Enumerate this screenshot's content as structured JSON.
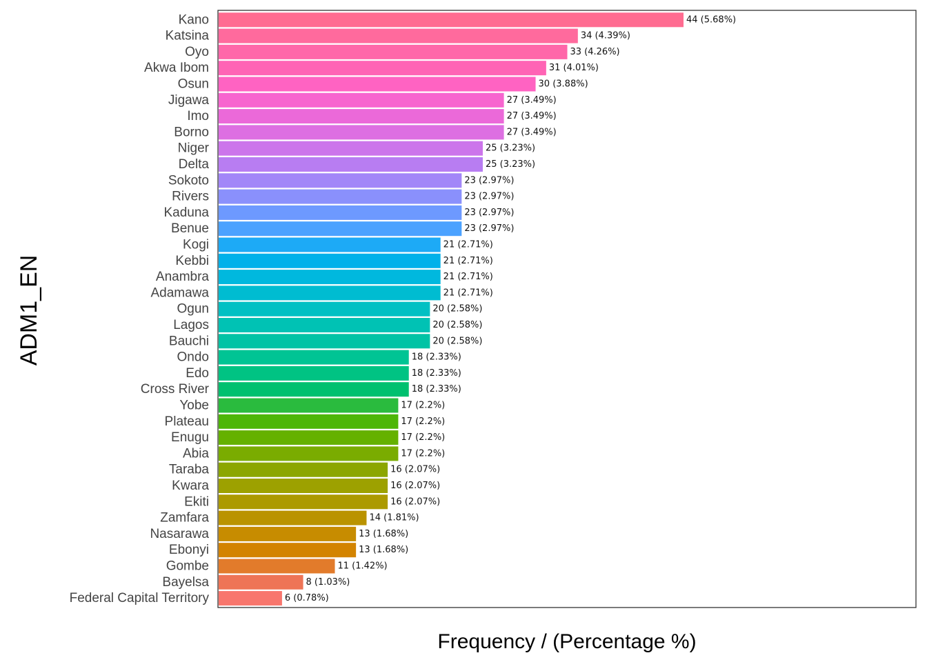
{
  "chart_data": {
    "type": "bar",
    "orientation": "horizontal",
    "xlabel": "Frequency / (Percentage %)",
    "ylabel": "ADM1_EN",
    "grid": false,
    "legend": "none",
    "categories": [
      "Kano",
      "Katsina",
      "Oyo",
      "Akwa Ibom",
      "Osun",
      "Jigawa",
      "Imo",
      "Borno",
      "Niger",
      "Delta",
      "Sokoto",
      "Rivers",
      "Kaduna",
      "Benue",
      "Kogi",
      "Kebbi",
      "Anambra",
      "Adamawa",
      "Ogun",
      "Lagos",
      "Bauchi",
      "Ondo",
      "Edo",
      "Cross River",
      "Yobe",
      "Plateau",
      "Enugu",
      "Abia",
      "Taraba",
      "Kwara",
      "Ekiti",
      "Zamfara",
      "Nasarawa",
      "Ebonyi",
      "Gombe",
      "Bayelsa",
      "Federal Capital Territory"
    ],
    "values": [
      44,
      34,
      33,
      31,
      30,
      27,
      27,
      27,
      25,
      25,
      23,
      23,
      23,
      23,
      21,
      21,
      21,
      21,
      20,
      20,
      20,
      18,
      18,
      18,
      17,
      17,
      17,
      17,
      16,
      16,
      16,
      14,
      13,
      13,
      11,
      8,
      6
    ],
    "labels": [
      "44 (5.68%)",
      "34 (4.39%)",
      "33 (4.26%)",
      "31 (4.01%)",
      "30 (3.88%)",
      "27 (3.49%)",
      "27 (3.49%)",
      "27 (3.49%)",
      "25 (3.23%)",
      "25 (3.23%)",
      "23 (2.97%)",
      "23 (2.97%)",
      "23 (2.97%)",
      "23 (2.97%)",
      "21 (2.71%)",
      "21 (2.71%)",
      "21 (2.71%)",
      "21 (2.71%)",
      "20 (2.58%)",
      "20 (2.58%)",
      "20 (2.58%)",
      "18 (2.33%)",
      "18 (2.33%)",
      "18 (2.33%)",
      "17 (2.2%)",
      "17 (2.2%)",
      "17 (2.2%)",
      "17 (2.2%)",
      "16 (2.07%)",
      "16 (2.07%)",
      "16 (2.07%)",
      "14 (1.81%)",
      "13 (1.68%)",
      "13 (1.68%)",
      "11 (1.42%)",
      "8 (1.03%)",
      "6 (0.78%)"
    ],
    "colors": [
      "#FF6C91",
      "#FF6A9D",
      "#FF67A9",
      "#FF64B5",
      "#FF63C2",
      "#F765CF",
      "#EB69D9",
      "#DD6FE2",
      "#CC75EB",
      "#B87DF2",
      "#A286F8",
      "#8A90FC",
      "#6D99FF",
      "#4BA2FF",
      "#1DAAF6",
      "#00B1EA",
      "#00B8DE",
      "#00BCD1",
      "#00C0C3",
      "#00C2B4",
      "#00C3A5",
      "#00C494",
      "#00C383",
      "#00C06F",
      "#2ABB3E",
      "#4DB607",
      "#65B100",
      "#7AAC00",
      "#8CA600",
      "#9DA100",
      "#AC9A00",
      "#BA9300",
      "#C78C00",
      "#D38400",
      "#E27B2B",
      "#EE7456",
      "#F8766D"
    ],
    "xlim": [
      0,
      44
    ]
  }
}
